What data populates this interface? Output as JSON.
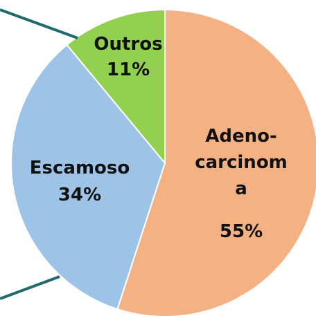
{
  "chart_data": {
    "type": "pie",
    "categories": [
      "Adeno-carcinoma",
      "Escamoso",
      "Outros"
    ],
    "values": [
      55,
      34,
      11
    ],
    "value_labels": [
      "55%",
      "34%",
      "11%"
    ],
    "colors": [
      "#f4b183",
      "#9dc3e6",
      "#92d050"
    ]
  }
}
